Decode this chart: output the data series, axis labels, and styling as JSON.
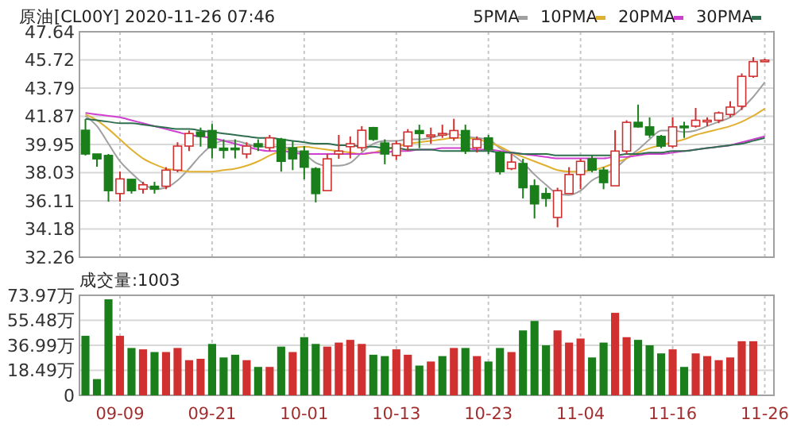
{
  "chart_data": [
    {
      "type": "candlestick",
      "title": "原油[CL00Y] 2020-11-26 07:46",
      "categories": [
        null,
        null,
        null,
        null,
        null,
        null,
        null,
        null,
        null,
        null,
        null,
        null,
        null,
        null,
        null,
        null,
        null,
        null,
        null,
        null,
        null,
        null,
        null,
        null,
        null,
        null,
        null,
        null,
        null,
        null,
        null,
        null,
        null,
        null,
        null,
        null,
        null,
        null,
        null,
        null,
        null,
        null,
        null,
        null,
        null,
        null,
        null,
        null,
        null,
        null,
        null,
        null,
        null,
        null,
        null,
        null,
        null,
        null,
        null,
        null
      ],
      "ohlc": [
        [
          40.92,
          41.68,
          39.2,
          39.3
        ],
        [
          39.3,
          39.3,
          38.43,
          38.97
        ],
        [
          39.2,
          39.3,
          36.05,
          36.8
        ],
        [
          36.6,
          38.1,
          36.05,
          37.6
        ],
        [
          37.57,
          37.6,
          36.6,
          36.8
        ],
        [
          36.9,
          37.4,
          36.6,
          37.2
        ],
        [
          37.1,
          37.4,
          36.6,
          36.9
        ],
        [
          37.1,
          38.4,
          36.9,
          38.2
        ],
        [
          38.2,
          40.1,
          38.05,
          39.84
        ],
        [
          39.84,
          40.9,
          39.5,
          40.7
        ],
        [
          40.8,
          41.1,
          39.8,
          40.5
        ],
        [
          40.9,
          41.35,
          39.0,
          39.73
        ],
        [
          39.7,
          40.3,
          39.0,
          39.55
        ],
        [
          39.7,
          40.3,
          39.0,
          39.6
        ],
        [
          39.3,
          40.1,
          39.0,
          39.84
        ],
        [
          40.0,
          40.3,
          39.5,
          39.8
        ],
        [
          39.73,
          40.6,
          39.5,
          40.4
        ],
        [
          40.3,
          40.4,
          38.1,
          38.8
        ],
        [
          39.73,
          40.16,
          38.2,
          38.97
        ],
        [
          39.5,
          39.84,
          37.57,
          38.4
        ],
        [
          38.3,
          38.4,
          36.0,
          36.6
        ],
        [
          36.8,
          39.3,
          36.8,
          38.97
        ],
        [
          39.3,
          40.6,
          38.97,
          39.5
        ],
        [
          39.8,
          40.5,
          39.0,
          40.0
        ],
        [
          39.73,
          41.2,
          39.5,
          40.92
        ],
        [
          41.1,
          41.15,
          40.2,
          40.3
        ],
        [
          40.05,
          40.3,
          38.6,
          39.3
        ],
        [
          39.2,
          40.2,
          38.9,
          40.0
        ],
        [
          39.84,
          41.0,
          39.5,
          40.8
        ],
        [
          40.9,
          41.3,
          39.7,
          40.7
        ],
        [
          40.5,
          41.1,
          40.0,
          40.6
        ],
        [
          40.6,
          41.3,
          40.4,
          40.7
        ],
        [
          40.4,
          41.7,
          40.2,
          40.9
        ],
        [
          40.9,
          41.3,
          39.3,
          39.5
        ],
        [
          39.73,
          40.5,
          39.4,
          40.3
        ],
        [
          40.4,
          40.6,
          39.3,
          39.6
        ],
        [
          39.4,
          39.5,
          37.9,
          38.1
        ],
        [
          38.3,
          39.3,
          38.2,
          38.75
        ],
        [
          38.65,
          38.97,
          36.27,
          37.0
        ],
        [
          37.13,
          37.57,
          34.9,
          35.9
        ],
        [
          36.6,
          37.0,
          35.7,
          36.27
        ],
        [
          34.97,
          37.0,
          34.3,
          36.8
        ],
        [
          36.6,
          38.4,
          36.6,
          37.9
        ],
        [
          37.9,
          38.97,
          36.9,
          38.8
        ],
        [
          38.97,
          39.2,
          38.05,
          38.2
        ],
        [
          38.2,
          38.4,
          36.9,
          37.35
        ],
        [
          37.13,
          40.92,
          37.13,
          39.5
        ],
        [
          39.5,
          41.6,
          39.3,
          41.46
        ],
        [
          41.46,
          42.67,
          41.1,
          41.15
        ],
        [
          41.15,
          41.8,
          40.4,
          40.6
        ],
        [
          40.5,
          40.6,
          39.7,
          39.84
        ],
        [
          39.84,
          41.8,
          39.73,
          41.15
        ],
        [
          41.2,
          41.5,
          40.4,
          41.1
        ],
        [
          41.2,
          42.44,
          41.1,
          41.6
        ],
        [
          41.5,
          41.8,
          41.2,
          41.6
        ],
        [
          41.6,
          42.2,
          41.4,
          42.1
        ],
        [
          42.0,
          42.9,
          41.8,
          42.5
        ],
        [
          42.56,
          44.8,
          42.3,
          44.6
        ],
        [
          44.6,
          45.9,
          44.5,
          45.6
        ],
        [
          45.7,
          45.8,
          45.6,
          45.7
        ]
      ],
      "colors": [
        "#1a7f1a",
        "#1a7f1a",
        "#1a7f1a",
        "#d03030",
        "#1a7f1a",
        "#d03030",
        "#1a7f1a",
        "#d03030",
        "#d03030",
        "#d03030",
        "#1a7f1a",
        "#1a7f1a",
        "#1a7f1a",
        "#1a7f1a",
        "#d03030",
        "#1a7f1a",
        "#d03030",
        "#1a7f1a",
        "#1a7f1a",
        "#1a7f1a",
        "#1a7f1a",
        "#d03030",
        "#d03030",
        "#d03030",
        "#d03030",
        "#1a7f1a",
        "#1a7f1a",
        "#d03030",
        "#d03030",
        "#1a7f1a",
        "#d03030",
        "#d03030",
        "#d03030",
        "#1a7f1a",
        "#d03030",
        "#1a7f1a",
        "#1a7f1a",
        "#d03030",
        "#1a7f1a",
        "#1a7f1a",
        "#1a7f1a",
        "#d03030",
        "#d03030",
        "#d03030",
        "#1a7f1a",
        "#1a7f1a",
        "#d03030",
        "#d03030",
        "#1a7f1a",
        "#1a7f1a",
        "#1a7f1a",
        "#d03030",
        "#1a7f1a",
        "#d03030",
        "#d03030",
        "#d03030",
        "#d03030",
        "#d03030",
        "#d03030",
        "#d03030"
      ],
      "series": [
        {
          "name": "5PMA",
          "type": "line",
          "color": "#a0a0a0",
          "values": [
            41.9,
            41.2,
            40.0,
            38.8,
            38.0,
            37.3,
            36.9,
            37.0,
            37.5,
            38.3,
            39.2,
            39.9,
            40.2,
            40.2,
            40.0,
            39.8,
            39.8,
            39.8,
            39.6,
            39.3,
            38.7,
            38.5,
            38.5,
            38.7,
            39.4,
            40.0,
            40.2,
            40.2,
            40.3,
            40.3,
            40.4,
            40.6,
            40.7,
            40.5,
            40.4,
            40.3,
            39.7,
            39.3,
            38.7,
            37.9,
            37.2,
            36.6,
            36.5,
            36.8,
            37.5,
            37.9,
            38.3,
            39.0,
            39.6,
            40.3,
            40.9,
            40.9,
            40.8,
            40.9,
            41.2,
            41.5,
            41.8,
            42.4,
            43.2,
            44.2
          ]
        },
        {
          "name": "10PMA",
          "type": "line",
          "color": "#e0b030",
          "values": [
            42.0,
            41.6,
            41.0,
            40.3,
            39.6,
            39.0,
            38.6,
            38.3,
            38.2,
            38.1,
            38.1,
            38.1,
            38.2,
            38.3,
            38.5,
            38.8,
            39.2,
            39.5,
            39.7,
            39.8,
            39.7,
            39.6,
            39.5,
            39.4,
            39.3,
            39.4,
            39.6,
            39.8,
            40.0,
            40.1,
            40.2,
            40.3,
            40.4,
            40.4,
            40.3,
            40.1,
            39.8,
            39.4,
            39.1,
            38.8,
            38.5,
            38.2,
            38.1,
            38.1,
            38.2,
            38.4,
            38.7,
            39.0,
            39.4,
            39.7,
            39.9,
            40.1,
            40.3,
            40.6,
            40.8,
            41.0,
            41.2,
            41.5,
            41.9,
            42.4
          ]
        },
        {
          "name": "20PMA",
          "type": "line",
          "color": "#d040d0",
          "values": [
            42.1,
            42.0,
            41.9,
            41.8,
            41.6,
            41.4,
            41.2,
            41.0,
            40.8,
            40.6,
            40.5,
            40.4,
            40.2,
            40.0,
            39.8,
            39.6,
            39.5,
            39.5,
            39.4,
            39.3,
            39.3,
            39.3,
            39.3,
            39.3,
            39.3,
            39.4,
            39.4,
            39.5,
            39.5,
            39.6,
            39.6,
            39.7,
            39.7,
            39.7,
            39.6,
            39.6,
            39.5,
            39.4,
            39.3,
            39.2,
            39.1,
            39.0,
            39.0,
            39.0,
            39.0,
            39.0,
            39.1,
            39.1,
            39.2,
            39.3,
            39.3,
            39.4,
            39.5,
            39.6,
            39.7,
            39.8,
            39.9,
            40.1,
            40.3,
            40.5
          ]
        },
        {
          "name": "30PMA",
          "type": "line",
          "color": "#2f6f4f",
          "values": [
            41.7,
            41.6,
            41.5,
            41.4,
            41.4,
            41.3,
            41.2,
            41.1,
            41.0,
            41.0,
            40.9,
            40.8,
            40.7,
            40.6,
            40.5,
            40.4,
            40.4,
            40.3,
            40.2,
            40.1,
            40.0,
            40.0,
            39.9,
            39.9,
            39.8,
            39.8,
            39.7,
            39.7,
            39.6,
            39.6,
            39.6,
            39.5,
            39.5,
            39.5,
            39.5,
            39.5,
            39.4,
            39.4,
            39.3,
            39.3,
            39.3,
            39.2,
            39.2,
            39.2,
            39.2,
            39.2,
            39.2,
            39.3,
            39.3,
            39.4,
            39.4,
            39.5,
            39.5,
            39.6,
            39.7,
            39.8,
            39.9,
            40.0,
            40.2,
            40.4
          ]
        }
      ],
      "ylim": [
        32.26,
        47.64
      ],
      "yticks": [
        32.26,
        34.18,
        36.11,
        38.03,
        39.95,
        41.87,
        43.79,
        45.72,
        47.64
      ],
      "grid": true,
      "legend": "top right",
      "tick_labels": "y"
    },
    {
      "type": "bar",
      "title": "成交量:1003",
      "categories": [
        null,
        null,
        null,
        "09-09",
        null,
        null,
        null,
        null,
        null,
        null,
        null,
        "09-21",
        null,
        null,
        null,
        null,
        null,
        null,
        null,
        "10-01",
        null,
        null,
        null,
        null,
        null,
        null,
        null,
        "10-13",
        null,
        null,
        null,
        null,
        null,
        null,
        null,
        "10-23",
        null,
        null,
        null,
        null,
        null,
        null,
        null,
        "11-04",
        null,
        null,
        null,
        null,
        null,
        null,
        null,
        "11-16",
        null,
        null,
        null,
        null,
        null,
        null,
        null,
        "11-26"
      ],
      "values": [
        44,
        12,
        71,
        44,
        35,
        34,
        32,
        32,
        35,
        26,
        27,
        38,
        28,
        30,
        26,
        21,
        21,
        36,
        32,
        43,
        38,
        36,
        39,
        41,
        38,
        30,
        29,
        34,
        30,
        22,
        25,
        29,
        35,
        35,
        29,
        25,
        35,
        32,
        48,
        55,
        37,
        48,
        39,
        42,
        28,
        39,
        61,
        43,
        41,
        37,
        31,
        34,
        21,
        31,
        29,
        26,
        28,
        40,
        40,
        0
      ],
      "colors": [
        "#1a7f1a",
        "#1a7f1a",
        "#1a7f1a",
        "#d03030",
        "#1a7f1a",
        "#d03030",
        "#1a7f1a",
        "#d03030",
        "#d03030",
        "#d03030",
        "#d03030",
        "#1a7f1a",
        "#1a7f1a",
        "#1a7f1a",
        "#d03030",
        "#1a7f1a",
        "#d03030",
        "#1a7f1a",
        "#d03030",
        "#1a7f1a",
        "#1a7f1a",
        "#d03030",
        "#d03030",
        "#d03030",
        "#d03030",
        "#1a7f1a",
        "#1a7f1a",
        "#d03030",
        "#d03030",
        "#1a7f1a",
        "#d03030",
        "#1a7f1a",
        "#d03030",
        "#1a7f1a",
        "#d03030",
        "#1a7f1a",
        "#1a7f1a",
        "#d03030",
        "#1a7f1a",
        "#1a7f1a",
        "#1a7f1a",
        "#d03030",
        "#d03030",
        "#d03030",
        "#1a7f1a",
        "#1a7f1a",
        "#d03030",
        "#d03030",
        "#1a7f1a",
        "#1a7f1a",
        "#1a7f1a",
        "#d03030",
        "#1a7f1a",
        "#d03030",
        "#d03030",
        "#d03030",
        "#d03030",
        "#d03030",
        "#d03030",
        "#d03030"
      ],
      "ylim": [
        0,
        73.97
      ],
      "yticks": [
        0,
        {
          "value": 18.49,
          "label": "18.49万"
        },
        {
          "value": 36.99,
          "label": "36.99万"
        },
        {
          "value": 55.48,
          "label": "55.48万"
        },
        {
          "value": 73.97,
          "label": "73.97万"
        }
      ],
      "grid": true
    }
  ]
}
